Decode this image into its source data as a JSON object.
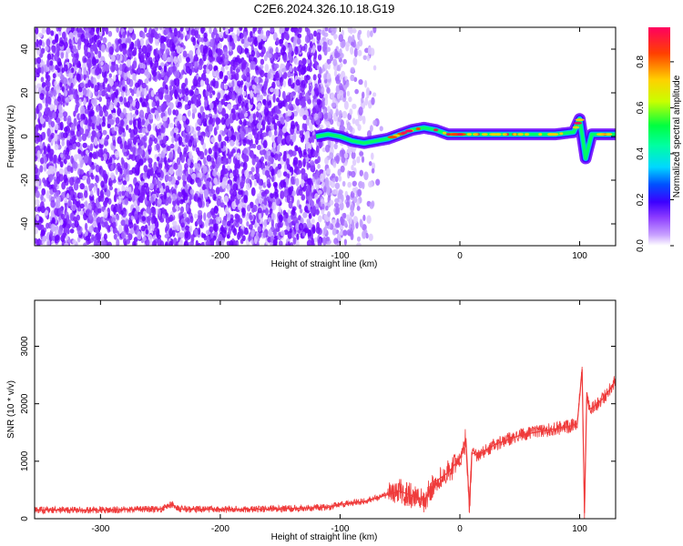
{
  "title": "C2E6.2024.326.10.18.G19",
  "chart_data": [
    {
      "type": "heatmap",
      "xlabel": "Height of straight line (km)",
      "ylabel": "Frequency (Hz)",
      "xlim": [
        -355,
        130
      ],
      "ylim": [
        -50,
        50
      ],
      "xticks": [
        -300,
        -200,
        -100,
        0,
        100
      ],
      "yticks": [
        -40,
        -20,
        0,
        20,
        40
      ],
      "xtick_labels": [
        "-300",
        "-200",
        "-100",
        "0",
        "100"
      ],
      "ytick_labels": [
        "-40",
        "-20",
        "0",
        "20",
        "40"
      ],
      "colorbar": {
        "label": "Normalized spectral amplitude",
        "range": [
          0,
          0.95
        ],
        "ticks": [
          0,
          0.2,
          0.4,
          0.6,
          0.8
        ],
        "tick_labels": [
          "0.0",
          "0.2",
          "0.4",
          "0.6",
          "0.8"
        ],
        "colors": [
          "#ffffff",
          "#8c3cff",
          "#3c00ff",
          "#0050ff",
          "#00d8ff",
          "#00ff40",
          "#c8ff00",
          "#ffd000",
          "#ff4000",
          "#ff0060"
        ]
      },
      "signal_track": {
        "x": [
          -120,
          -110,
          -100,
          -90,
          -80,
          -70,
          -60,
          -50,
          -40,
          -30,
          -20,
          -10,
          0,
          10,
          20,
          40,
          60,
          80,
          95,
          100,
          105,
          110,
          120,
          130
        ],
        "y": [
          0,
          1,
          0,
          -2,
          -3,
          -2,
          -1,
          1,
          3,
          4,
          3,
          1,
          1,
          1,
          1,
          1,
          1,
          1,
          2,
          8,
          -10,
          1,
          1,
          1
        ]
      },
      "grid": false
    },
    {
      "type": "line",
      "xlabel": "Height of straight line (km)",
      "ylabel": "SNR (10 * v/v)",
      "xlim": [
        -355,
        130
      ],
      "ylim": [
        0,
        3800
      ],
      "xticks": [
        -300,
        -200,
        -100,
        0,
        100
      ],
      "yticks": [
        0,
        1000,
        2000,
        3000
      ],
      "xtick_labels": [
        "-300",
        "-200",
        "-100",
        "0",
        "100"
      ],
      "ytick_labels": [
        "0",
        "1000",
        "2000",
        "3000"
      ],
      "color": "#ef3b3b",
      "x": [
        -355,
        -300,
        -250,
        -240,
        -235,
        -200,
        -150,
        -110,
        -100,
        -80,
        -60,
        -50,
        -40,
        -30,
        -20,
        -10,
        0,
        5,
        8,
        10,
        15,
        30,
        50,
        70,
        90,
        98,
        102,
        104,
        106,
        108,
        112,
        120,
        130
      ],
      "y": [
        150,
        150,
        170,
        250,
        170,
        160,
        170,
        200,
        250,
        300,
        420,
        480,
        400,
        320,
        650,
        800,
        1050,
        1400,
        200,
        1150,
        1100,
        1300,
        1450,
        1530,
        1600,
        1650,
        2600,
        100,
        2200,
        1900,
        1950,
        2100,
        2400
      ],
      "grid": false
    }
  ]
}
